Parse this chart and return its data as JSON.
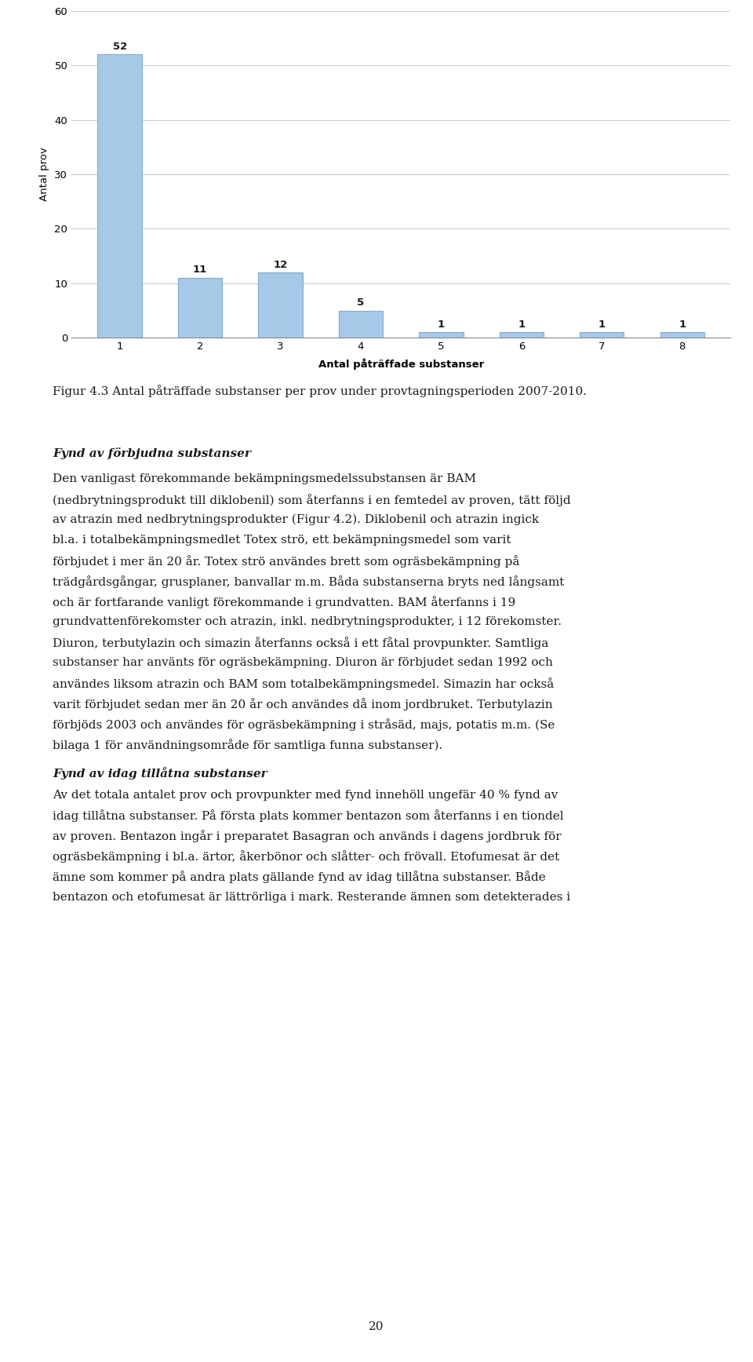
{
  "bar_values": [
    52,
    11,
    12,
    5,
    1,
    1,
    1,
    1
  ],
  "bar_categories": [
    1,
    2,
    3,
    4,
    5,
    6,
    7,
    8
  ],
  "bar_color": "#a8c8e8",
  "bar_edge_color": "#7ab0d4",
  "ylabel": "Antal prov",
  "xlabel": "Antal påträffade substanser",
  "ylim": [
    0,
    60
  ],
  "yticks": [
    0,
    10,
    20,
    30,
    40,
    50,
    60
  ],
  "grid_color": "#cccccc",
  "figure_caption": "Figur 4.3 Antal påträffade substanser per prov under provtagningsperioden 2007-2010.",
  "section1_title": "Fynd av förbjudna substanser",
  "section1_body": "Den vanligast förekommande bekämpningsmedelssubstansen är BAM\n(nedbrytningsprodukt till diklobenil) som återfanns i en femtedel av proven, tätt följd\nav atrazin med nedbrytningsprodukter (Figur 4.2). Diklobenil och atrazin ingick\nbl.a. i totalbekämpningsmedlet Totex strö, ett bekämpningsmedel som varit\nförbjudet i mer än 20 år. Totex strö användes brett som ogräsbekämpning på\nträdgårdsgångar, grusplaner, banvallar m.m. Båda substanserna bryts ned långsamt\noch är fortfarande vanligt förekommande i grundvatten. BAM återfanns i 19\ngrundvattenförekomster och atrazin, inkl. nedbrytningsprodukter, i 12 förekomster.\nDiuron, terbutylazin och simazin återfanns också i ett fåtal provpunkter. Samtliga\nsubstanser har använts för ogräsbekämpning. Diuron är förbjudet sedan 1992 och\nanvändes liksom atrazin och BAM som totalbekämpningsmedel. Simazin har också\nvarit förbjudet sedan mer än 20 år och användes då inom jordbruket. Terbutylazin\nförbjöds 2003 och användes för ogräsbekämpning i stråsäd, majs, potatis m.m. (Se\nbilaga 1 för användningsområde för samtliga funna substanser).",
  "section2_title": "Fynd av idag tillåtna substanser",
  "section2_body": "Av det totala antalet prov och provpunkter med fynd innehöll ungefär 40 % fynd av\nidag tillåtna substanser. På första plats kommer bentazon som återfanns i en tiondel\nav proven. Bentazon ingår i preparatet Basagran och används i dagens jordbruk för\nogräsbekämpning i bl.a. ärtor, åkerbönor och slåtter- och frövall. Etofumesat är det\nämne som kommer på andra plats gällande fynd av idag tillåtna substanser. Både\nbentazon och etofumesat är lättrörliga i mark. Resterande ämnen som detekterades i",
  "page_number": "20",
  "text_color": "#1a1a1a",
  "background_color": "#ffffff",
  "chart_background": "#ffffff"
}
